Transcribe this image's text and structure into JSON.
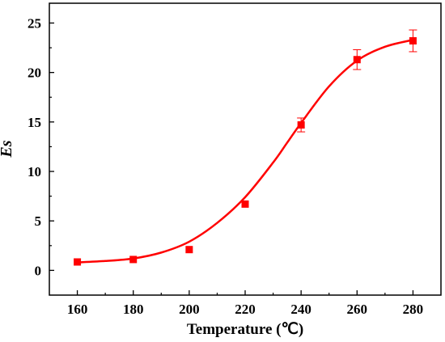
{
  "chart_data": {
    "type": "scatter",
    "xlabel": "Temperature (℃)",
    "ylabel": "Es",
    "xlim": [
      150,
      290
    ],
    "ylim": [
      -2.5,
      27
    ],
    "xticks": [
      160,
      180,
      200,
      220,
      240,
      260,
      280
    ],
    "yticks": [
      0,
      5,
      10,
      15,
      20,
      25
    ],
    "grid": false,
    "series": [
      {
        "marker": "square",
        "color": "#ff0000",
        "x": [
          160,
          180,
          200,
          220,
          240,
          260,
          280
        ],
        "y": [
          0.85,
          1.1,
          2.1,
          6.7,
          14.7,
          21.3,
          23.2
        ],
        "error": [
          0,
          0,
          0,
          0,
          0.7,
          1.0,
          1.1
        ]
      }
    ],
    "fit_curve": {
      "color": "#ff0000",
      "x": [
        160,
        170,
        180,
        190,
        200,
        210,
        220,
        230,
        235,
        240,
        250,
        260,
        270,
        280
      ],
      "y": [
        0.8,
        0.95,
        1.2,
        1.8,
        2.9,
        4.8,
        7.4,
        10.9,
        12.9,
        14.9,
        18.6,
        21.2,
        22.6,
        23.3
      ]
    }
  }
}
